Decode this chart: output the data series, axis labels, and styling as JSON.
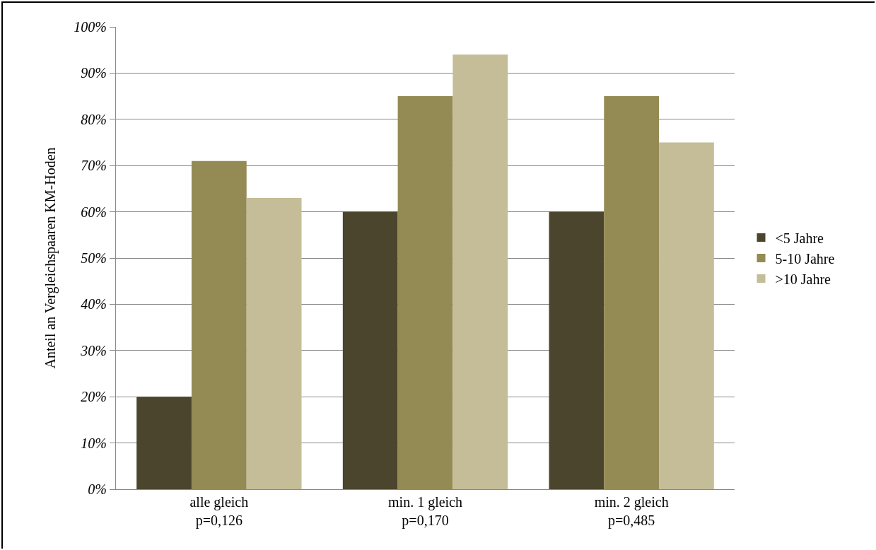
{
  "chart_data": {
    "type": "bar",
    "ylabel": "Anteil an Vergleichspaaren KM-Hoden",
    "categories": [
      "alle gleich\np=0,126",
      "min. 1 gleich\np=0,170",
      "min. 2 gleich\np=0,485"
    ],
    "series": [
      {
        "name": "<5 Jahre",
        "color": "#4a452c",
        "values": [
          20,
          60,
          60
        ]
      },
      {
        "name": "5-10 Jahre",
        "color": "#948a54",
        "values": [
          71,
          85,
          85
        ]
      },
      {
        "name": ">10 Jahre",
        "color": "#c4bd97",
        "values": [
          63,
          94,
          75
        ]
      }
    ],
    "ylim": [
      0,
      100
    ],
    "yticks": [
      {
        "value": 0,
        "label": "0%"
      },
      {
        "value": 10,
        "label": "10%"
      },
      {
        "value": 20,
        "label": "20%"
      },
      {
        "value": 30,
        "label": "30%"
      },
      {
        "value": 40,
        "label": "40%"
      },
      {
        "value": 50,
        "label": "50%"
      },
      {
        "value": 60,
        "label": "60%"
      },
      {
        "value": 70,
        "label": "70%"
      },
      {
        "value": 80,
        "label": "80%"
      },
      {
        "value": 90,
        "label": "90%"
      },
      {
        "value": 100,
        "label": "100%"
      }
    ],
    "grid": "y",
    "legend": "right"
  }
}
